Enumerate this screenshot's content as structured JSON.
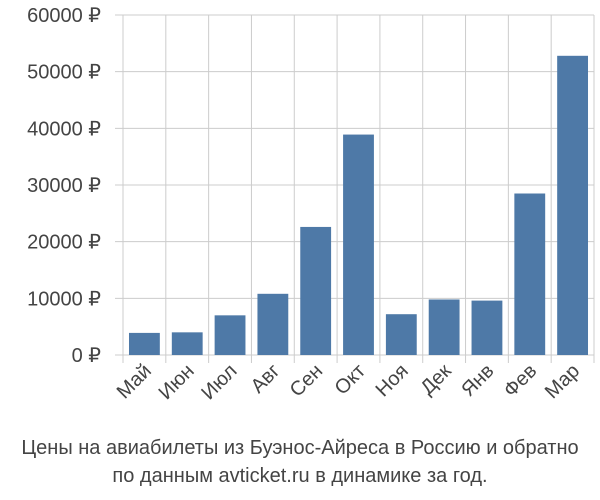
{
  "chart_data": {
    "type": "bar",
    "categories": [
      "Май",
      "Июн",
      "Июл",
      "Авг",
      "Сен",
      "Окт",
      "Ноя",
      "Дек",
      "Янв",
      "Фев",
      "Мар"
    ],
    "values": [
      3900,
      4000,
      7000,
      10800,
      22600,
      38900,
      7200,
      9800,
      9600,
      28500,
      52800
    ],
    "ylim": [
      0,
      60000
    ],
    "yticks": [
      0,
      10000,
      20000,
      30000,
      40000,
      50000,
      60000
    ],
    "ytick_labels": [
      "0 ₽",
      "10000 ₽",
      "20000 ₽",
      "30000 ₽",
      "40000 ₽",
      "50000 ₽",
      "60000 ₽"
    ],
    "grid": true,
    "bar_color": "#4e79a7",
    "grid_color": "#cccccc",
    "axis_text_color": "#444444"
  },
  "caption": {
    "line1": "Цены на авиабилеты из Буэнос-Айреса в Россию и обратно",
    "line2": "по данным avticket.ru в динамике за год."
  }
}
